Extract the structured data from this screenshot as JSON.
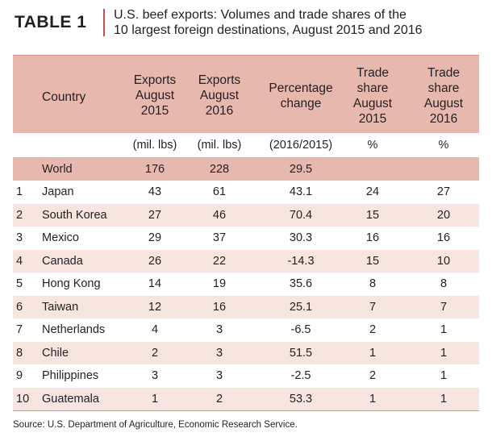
{
  "header": {
    "table_label": "TABLE 1",
    "title_line1": "U.S. beef exports: Volumes and trade shares of the",
    "title_line2": "10 largest foreign destinations, August 2015 and 2016"
  },
  "columns": {
    "country": "Country",
    "exports_2015": [
      "Exports",
      "August",
      "2015"
    ],
    "exports_2016": [
      "Exports",
      "August",
      "2016"
    ],
    "pct_change": [
      "Percentage",
      "change"
    ],
    "share_2015": [
      "Trade",
      "share",
      "August",
      "2015"
    ],
    "share_2016": [
      "Trade",
      "share",
      "August",
      "2016"
    ]
  },
  "units": {
    "exports_2015": "(mil. lbs)",
    "exports_2016": "(mil. lbs)",
    "pct_change": "(2016/2015)",
    "share_2015": "%",
    "share_2016": "%"
  },
  "world": {
    "country": "World",
    "exports_2015": "176",
    "exports_2016": "228",
    "pct_change": "29.5"
  },
  "rows": [
    {
      "rank": "1",
      "country": "Japan",
      "exports_2015": "43",
      "exports_2016": "61",
      "pct_change": "43.1",
      "share_2015": "24",
      "share_2016": "27"
    },
    {
      "rank": "2",
      "country": "South Korea",
      "exports_2015": "27",
      "exports_2016": "46",
      "pct_change": "70.4",
      "share_2015": "15",
      "share_2016": "20"
    },
    {
      "rank": "3",
      "country": "Mexico",
      "exports_2015": "29",
      "exports_2016": "37",
      "pct_change": "30.3",
      "share_2015": "16",
      "share_2016": "16"
    },
    {
      "rank": "4",
      "country": "Canada",
      "exports_2015": "26",
      "exports_2016": "22",
      "pct_change": "-14.3",
      "share_2015": "15",
      "share_2016": "10"
    },
    {
      "rank": "5",
      "country": "Hong Kong",
      "exports_2015": "14",
      "exports_2016": "19",
      "pct_change": "35.6",
      "share_2015": "8",
      "share_2016": "8"
    },
    {
      "rank": "6",
      "country": "Taiwan",
      "exports_2015": "12",
      "exports_2016": "16",
      "pct_change": "25.1",
      "share_2015": "7",
      "share_2016": "7"
    },
    {
      "rank": "7",
      "country": "Netherlands",
      "exports_2015": "4",
      "exports_2016": "3",
      "pct_change": "-6.5",
      "share_2015": "2",
      "share_2016": "1"
    },
    {
      "rank": "8",
      "country": "Chile",
      "exports_2015": "2",
      "exports_2016": "3",
      "pct_change": "51.5",
      "share_2015": "1",
      "share_2016": "1"
    },
    {
      "rank": "9",
      "country": "Philippines",
      "exports_2015": "3",
      "exports_2016": "3",
      "pct_change": "-2.5",
      "share_2015": "2",
      "share_2016": "1"
    },
    {
      "rank": "10",
      "country": "Guatemala",
      "exports_2015": "1",
      "exports_2016": "2",
      "pct_change": "53.3",
      "share_2015": "1",
      "share_2016": "1"
    }
  ],
  "source": "Source: U.S. Department of Agriculture, Economic Research Service.",
  "colors": {
    "band_dark": "#e7b8ae",
    "band_light": "#f7e5df",
    "accent": "#c0504d"
  }
}
